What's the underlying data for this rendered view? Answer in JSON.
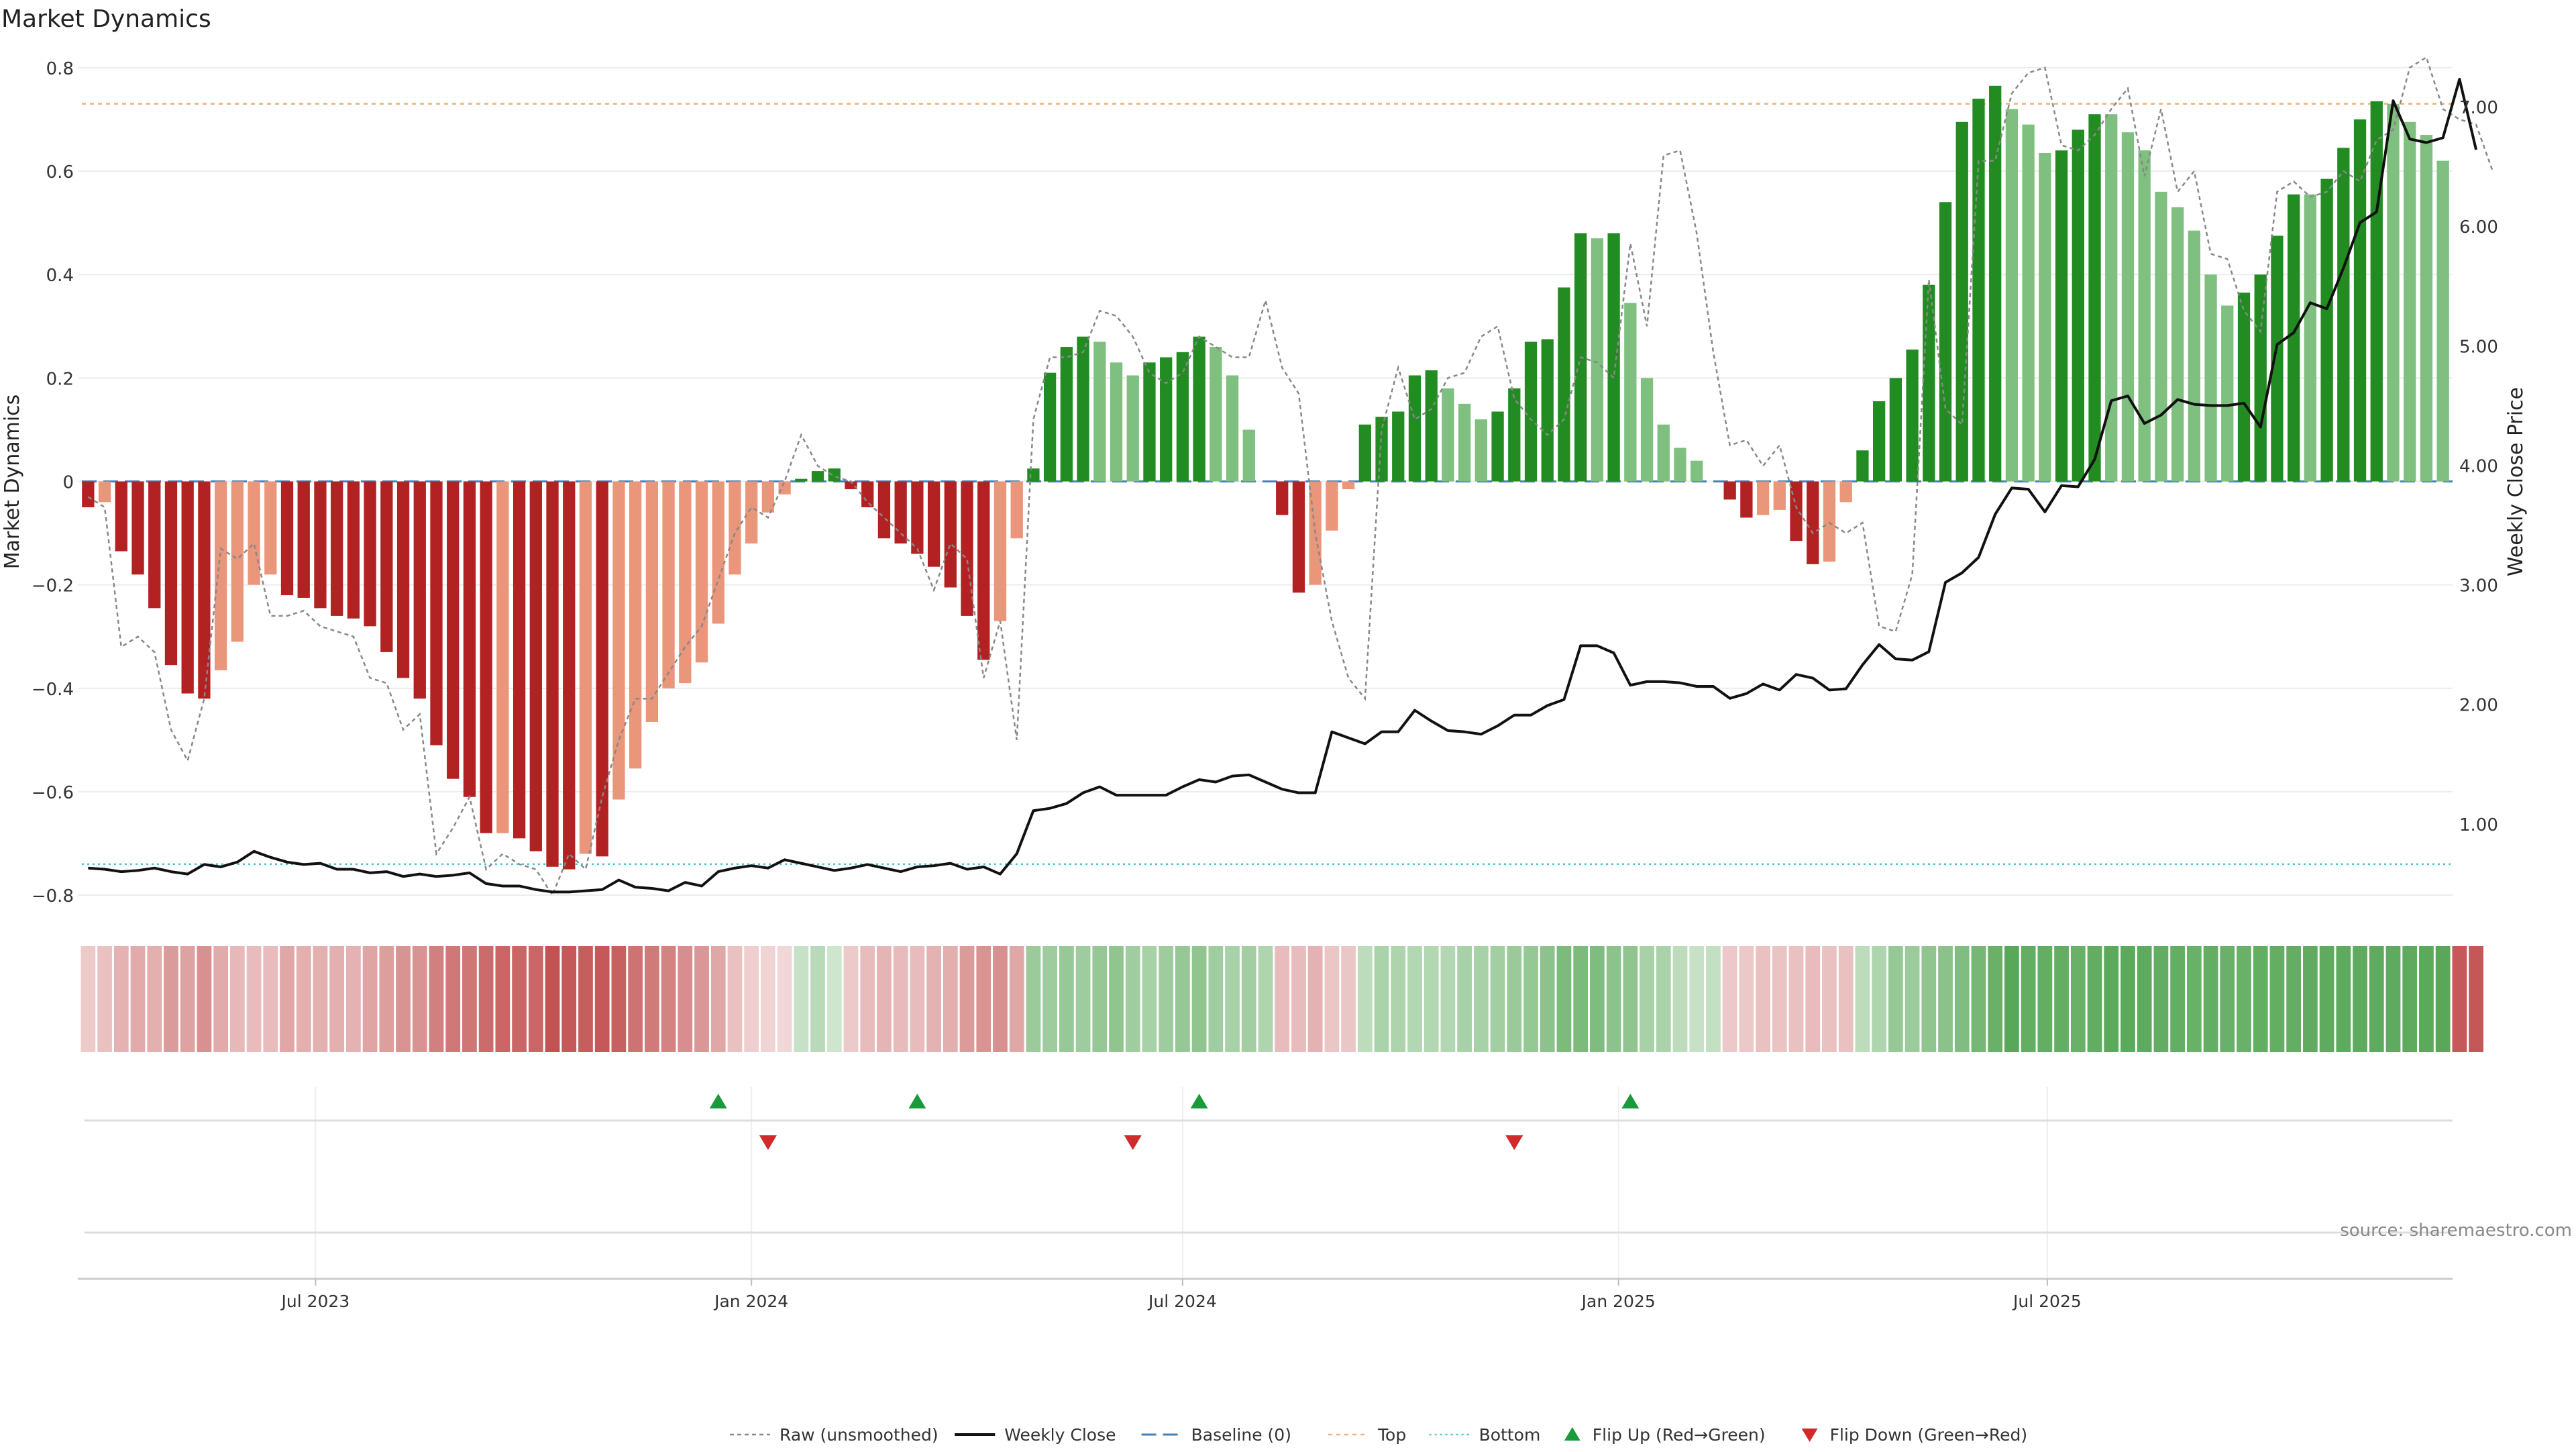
{
  "chart_data": {
    "type": "bar",
    "title": "Market Dynamics",
    "ylabel_left": "Market Dynamics",
    "ylabel_right": "Weekly Close Price",
    "ylim_left": [
      -0.84,
      0.84
    ],
    "yticks_left": [
      "0.8",
      "0.6",
      "0.4",
      "0.2",
      "0",
      "−0.2",
      "−0.4",
      "−0.6",
      "−0.8"
    ],
    "ylim_right": [
      0.23,
      7.5
    ],
    "yticks_right": [
      "7.00",
      "6.00",
      "5.00",
      "4.00",
      "3.00",
      "2.00",
      "1.00"
    ],
    "x_start": "2023-03-27",
    "x_step_days": 7,
    "x_tick_labels": [
      "Jul 2023",
      "Jan 2024",
      "Jul 2024",
      "Jan 2025",
      "Jul 2025"
    ],
    "x_tick_dates": [
      "2023-07-01",
      "2024-01-01",
      "2024-07-01",
      "2025-01-01",
      "2025-07-01"
    ],
    "top_level": 0.73,
    "bottom_level": -0.74,
    "baseline": 0,
    "bars": [
      -0.05,
      -0.04,
      -0.135,
      -0.18,
      -0.245,
      -0.355,
      -0.41,
      -0.42,
      -0.365,
      -0.31,
      -0.2,
      -0.18,
      -0.22,
      -0.225,
      -0.245,
      -0.26,
      -0.265,
      -0.28,
      -0.33,
      -0.38,
      -0.42,
      -0.51,
      -0.575,
      -0.61,
      -0.68,
      -0.68,
      -0.69,
      -0.715,
      -0.745,
      -0.75,
      -0.72,
      -0.725,
      -0.615,
      -0.555,
      -0.465,
      -0.4,
      -0.39,
      -0.35,
      -0.275,
      -0.18,
      -0.12,
      -0.06,
      -0.025,
      0.005,
      0.02,
      0.025,
      -0.015,
      -0.05,
      -0.11,
      -0.12,
      -0.14,
      -0.165,
      -0.205,
      -0.26,
      -0.345,
      -0.27,
      -0.11,
      0.025,
      0.21,
      0.26,
      0.28,
      0.27,
      0.23,
      0.205,
      0.23,
      0.24,
      0.25,
      0.28,
      0.26,
      0.205,
      0.1,
      0.0,
      -0.065,
      -0.215,
      -0.2,
      -0.095,
      -0.015,
      0.11,
      0.125,
      0.135,
      0.205,
      0.215,
      0.18,
      0.15,
      0.12,
      0.135,
      0.18,
      0.27,
      0.275,
      0.375,
      0.48,
      0.47,
      0.48,
      0.345,
      0.2,
      0.11,
      0.065,
      0.04,
      0.0,
      -0.035,
      -0.07,
      -0.065,
      -0.055,
      -0.115,
      -0.16,
      -0.155,
      -0.04,
      0.06,
      0.155,
      0.2,
      0.255,
      0.38,
      0.54,
      0.695,
      0.74,
      0.765,
      0.72,
      0.69,
      0.635,
      0.64,
      0.68,
      0.71,
      0.71,
      0.675,
      0.64,
      0.56,
      0.53,
      0.485,
      0.4,
      0.34,
      0.365,
      0.4,
      0.475,
      0.555,
      0.555,
      0.585,
      0.645,
      0.7,
      0.735,
      0.73,
      0.695,
      0.67,
      0.62
    ],
    "raw": [
      -0.03,
      -0.05,
      -0.32,
      -0.3,
      -0.33,
      -0.48,
      -0.54,
      -0.42,
      -0.13,
      -0.15,
      -0.12,
      -0.26,
      -0.26,
      -0.25,
      -0.28,
      -0.29,
      -0.3,
      -0.38,
      -0.39,
      -0.48,
      -0.45,
      -0.72,
      -0.67,
      -0.61,
      -0.75,
      -0.72,
      -0.74,
      -0.75,
      -0.8,
      -0.72,
      -0.75,
      -0.61,
      -0.5,
      -0.42,
      -0.42,
      -0.37,
      -0.32,
      -0.28,
      -0.19,
      -0.1,
      -0.05,
      -0.07,
      0.0,
      0.09,
      0.03,
      0.01,
      0.0,
      -0.04,
      -0.07,
      -0.1,
      -0.13,
      -0.21,
      -0.12,
      -0.15,
      -0.38,
      -0.27,
      -0.5,
      0.12,
      0.24,
      0.24,
      0.25,
      0.33,
      0.32,
      0.28,
      0.21,
      0.19,
      0.21,
      0.28,
      0.26,
      0.24,
      0.24,
      0.35,
      0.22,
      0.17,
      -0.1,
      -0.27,
      -0.38,
      -0.42,
      0.1,
      0.22,
      0.12,
      0.14,
      0.2,
      0.21,
      0.28,
      0.3,
      0.16,
      0.12,
      0.09,
      0.12,
      0.24,
      0.23,
      0.2,
      0.46,
      0.3,
      0.63,
      0.64,
      0.48,
      0.25,
      0.07,
      0.08,
      0.03,
      0.07,
      -0.05,
      -0.1,
      -0.08,
      -0.1,
      -0.08,
      -0.28,
      -0.29,
      -0.18,
      0.39,
      0.14,
      0.11,
      0.62,
      0.62,
      0.75,
      0.79,
      0.8,
      0.65,
      0.64,
      0.67,
      0.72,
      0.76,
      0.59,
      0.72,
      0.56,
      0.6,
      0.44,
      0.43,
      0.33,
      0.29,
      0.56,
      0.58,
      0.55,
      0.56,
      0.6,
      0.58,
      0.66,
      0.68,
      0.8,
      0.82,
      0.72,
      0.7,
      0.69,
      0.6
    ],
    "close": [
      0.63,
      0.62,
      0.6,
      0.61,
      0.63,
      0.6,
      0.58,
      0.66,
      0.64,
      0.68,
      0.77,
      0.72,
      0.68,
      0.66,
      0.67,
      0.62,
      0.62,
      0.59,
      0.6,
      0.56,
      0.58,
      0.56,
      0.57,
      0.59,
      0.5,
      0.48,
      0.48,
      0.45,
      0.43,
      0.43,
      0.44,
      0.45,
      0.53,
      0.47,
      0.46,
      0.44,
      0.51,
      0.48,
      0.6,
      0.63,
      0.65,
      0.63,
      0.7,
      0.67,
      0.64,
      0.61,
      0.63,
      0.66,
      0.63,
      0.6,
      0.64,
      0.65,
      0.67,
      0.62,
      0.64,
      0.58,
      0.75,
      1.11,
      1.13,
      1.17,
      1.26,
      1.31,
      1.24,
      1.24,
      1.24,
      1.24,
      1.31,
      1.37,
      1.35,
      1.4,
      1.41,
      1.35,
      1.29,
      1.26,
      1.26,
      1.77,
      1.72,
      1.67,
      1.77,
      1.77,
      1.95,
      1.86,
      1.78,
      1.77,
      1.75,
      1.82,
      1.91,
      1.91,
      1.99,
      2.04,
      2.49,
      2.49,
      2.43,
      2.16,
      2.19,
      2.19,
      2.18,
      2.15,
      2.15,
      2.05,
      2.09,
      2.17,
      2.12,
      2.25,
      2.22,
      2.12,
      2.13,
      2.33,
      2.5,
      2.38,
      2.37,
      2.44,
      3.02,
      3.1,
      3.23,
      3.59,
      3.81,
      3.8,
      3.61,
      3.83,
      3.82,
      4.05,
      4.54,
      4.58,
      4.35,
      4.42,
      4.55,
      4.51,
      4.5,
      4.5,
      4.52,
      4.32,
      5.01,
      5.11,
      5.36,
      5.31,
      5.65,
      6.03,
      6.12,
      7.05,
      6.73,
      6.7,
      6.74,
      7.23,
      6.64
    ],
    "heat_strip": [
      0.24,
      0.28,
      0.35,
      0.38,
      0.36,
      0.45,
      0.42,
      0.5,
      0.38,
      0.32,
      0.3,
      0.3,
      0.4,
      0.36,
      0.36,
      0.36,
      0.35,
      0.41,
      0.44,
      0.49,
      0.49,
      0.58,
      0.61,
      0.62,
      0.67,
      0.69,
      0.69,
      0.69,
      0.78,
      0.75,
      0.73,
      0.75,
      0.72,
      0.63,
      0.6,
      0.56,
      0.51,
      0.47,
      0.4,
      0.28,
      0.22,
      0.2,
      0.18,
      0.26,
      0.32,
      0.22,
      0.24,
      0.3,
      0.34,
      0.31,
      0.3,
      0.35,
      0.37,
      0.45,
      0.49,
      0.5,
      0.4,
      0.45,
      0.44,
      0.47,
      0.44,
      0.48,
      0.5,
      0.43,
      0.4,
      0.44,
      0.48,
      0.5,
      0.43,
      0.4,
      0.42,
      0.36,
      0.3,
      0.3,
      0.35,
      0.26,
      0.26,
      0.3,
      0.38,
      0.37,
      0.35,
      0.35,
      0.35,
      0.4,
      0.4,
      0.42,
      0.46,
      0.48,
      0.52,
      0.59,
      0.59,
      0.58,
      0.52,
      0.5,
      0.4,
      0.38,
      0.3,
      0.26,
      0.27,
      0.25,
      0.25,
      0.28,
      0.27,
      0.28,
      0.3,
      0.28,
      0.28,
      0.3,
      0.36,
      0.48,
      0.45,
      0.5,
      0.53,
      0.57,
      0.62,
      0.68,
      0.75,
      0.7,
      0.7,
      0.7,
      0.68,
      0.71,
      0.74,
      0.74,
      0.73,
      0.71,
      0.7,
      0.68,
      0.7,
      0.68,
      0.68,
      0.7,
      0.7,
      0.7,
      0.72,
      0.73,
      0.73,
      0.73,
      0.73,
      0.73,
      0.73,
      0.74,
      0.75,
      0.75,
      0.76
    ],
    "flip_up_weeks": [
      38,
      50,
      67,
      93
    ],
    "flip_down_weeks": [
      41,
      63,
      86
    ],
    "colors": {
      "red_strong": "#b22222",
      "red_light": "#e9967a",
      "green_strong": "#228b22",
      "green_light": "#7fbf7f",
      "close_line": "#111111",
      "raw_line": "#888888",
      "baseline": "#4a7eb5",
      "top": "#f0b07a",
      "bottom": "#4fc3d0",
      "flip_up": "#1a9a3a",
      "flip_down": "#d12a2a"
    },
    "legend": {
      "placement": "bottom-center",
      "items": [
        {
          "key": "raw",
          "label": "Raw (unsmoothed)"
        },
        {
          "key": "close",
          "label": "Weekly Close"
        },
        {
          "key": "baseline",
          "label": "Baseline (0)"
        },
        {
          "key": "top",
          "label": "Top"
        },
        {
          "key": "bottom",
          "label": "Bottom"
        },
        {
          "key": "flip_up",
          "label": "Flip Up (Red→Green)"
        },
        {
          "key": "flip_down",
          "label": "Flip Down (Green→Red)"
        }
      ]
    },
    "source_note": "source: sharemaestro.com"
  }
}
